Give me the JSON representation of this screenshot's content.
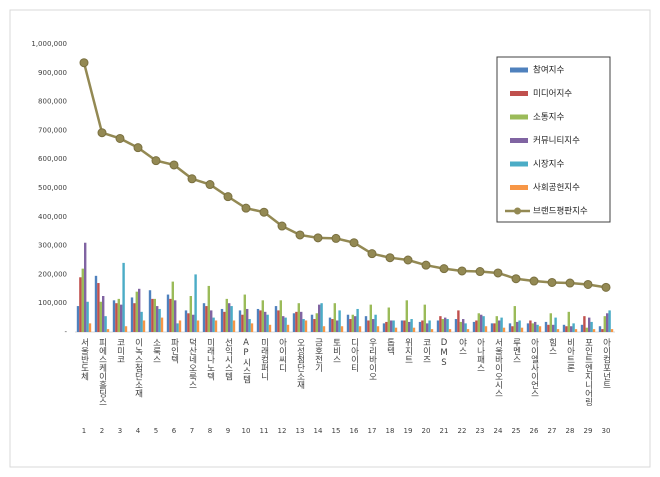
{
  "chart_data": {
    "type": "bar-line",
    "categories": [
      "서울반도체",
      "피에스케이홀딩스",
      "코미코",
      "이녹스첨단소재",
      "소룩스",
      "파인텍",
      "덕산네오룩스",
      "미래나노텍",
      "선익시스템",
      "AP시스템",
      "미래컴퍼니",
      "아이씨디",
      "오성첨단소재",
      "금호전기",
      "토비스",
      "디아이티",
      "우리바이오",
      "톱텍",
      "위지트",
      "코이즈",
      "DMS",
      "야스",
      "아나패스",
      "서울바이오시스",
      "루멘스",
      "아이엘사이언스",
      "힘스",
      "비아트론",
      "포인트엔지니어링",
      "아이컴포넌트"
    ],
    "ranks": [
      1,
      2,
      3,
      4,
      5,
      6,
      7,
      8,
      9,
      10,
      11,
      12,
      13,
      14,
      15,
      16,
      17,
      18,
      19,
      20,
      21,
      22,
      23,
      24,
      25,
      26,
      27,
      28,
      29,
      30
    ],
    "series": [
      {
        "name": "참여지수",
        "color": "#4f81bd",
        "values": [
          90000,
          195000,
          110000,
          120000,
          145000,
          130000,
          75000,
          100000,
          80000,
          75000,
          80000,
          90000,
          65000,
          60000,
          50000,
          60000,
          55000,
          30000,
          40000,
          35000,
          40000,
          45000,
          35000,
          30000,
          30000,
          30000,
          35000,
          25000,
          25000,
          20000
        ]
      },
      {
        "name": "미디어지수",
        "color": "#c0504d",
        "values": [
          190000,
          170000,
          100000,
          100000,
          115000,
          115000,
          65000,
          90000,
          70000,
          60000,
          75000,
          75000,
          70000,
          45000,
          45000,
          45000,
          40000,
          35000,
          40000,
          40000,
          55000,
          75000,
          40000,
          30000,
          20000,
          40000,
          25000,
          20000,
          55000,
          10000
        ]
      },
      {
        "name": "소통지수",
        "color": "#9bbb59",
        "values": [
          220000,
          105000,
          115000,
          140000,
          115000,
          175000,
          125000,
          160000,
          115000,
          130000,
          110000,
          110000,
          100000,
          65000,
          100000,
          60000,
          95000,
          85000,
          110000,
          95000,
          45000,
          35000,
          65000,
          55000,
          90000,
          30000,
          65000,
          70000,
          15000,
          55000
        ]
      },
      {
        "name": "커뮤니티지수",
        "color": "#8064a2",
        "values": [
          310000,
          125000,
          95000,
          150000,
          90000,
          110000,
          60000,
          75000,
          100000,
          80000,
          70000,
          55000,
          70000,
          95000,
          40000,
          55000,
          45000,
          40000,
          35000,
          30000,
          50000,
          45000,
          60000,
          40000,
          35000,
          35000,
          25000,
          20000,
          50000,
          65000
        ]
      },
      {
        "name": "시장지수",
        "color": "#4bacc6",
        "values": [
          105000,
          55000,
          240000,
          70000,
          80000,
          30000,
          200000,
          50000,
          90000,
          45000,
          60000,
          50000,
          45000,
          100000,
          75000,
          80000,
          60000,
          40000,
          45000,
          40000,
          45000,
          30000,
          55000,
          50000,
          40000,
          25000,
          50000,
          30000,
          35000,
          75000
        ]
      },
      {
        "name": "사회공헌지수",
        "color": "#f79646",
        "values": [
          30000,
          10000,
          20000,
          40000,
          50000,
          40000,
          40000,
          40000,
          40000,
          30000,
          25000,
          25000,
          40000,
          20000,
          20000,
          20000,
          20000,
          15000,
          15000,
          10000,
          10000,
          10000,
          20000,
          15000,
          15000,
          20000,
          10000,
          10000,
          10000,
          10000
        ]
      },
      {
        "name": "브랜드평판지수",
        "color": "#938953",
        "type": "line",
        "values": [
          935000,
          692000,
          672000,
          640000,
          595000,
          580000,
          532000,
          512000,
          470000,
          430000,
          416000,
          368000,
          337000,
          327000,
          325000,
          310000,
          272000,
          258000,
          250000,
          232000,
          220000,
          212000,
          210000,
          205000,
          185000,
          177000,
          172000,
          170000,
          165000,
          155000
        ]
      }
    ],
    "ylim": [
      0,
      1000000
    ],
    "yticks": [
      {
        "value": 0,
        "label": "-"
      },
      {
        "value": 100000,
        "label": "100,000"
      },
      {
        "value": 200000,
        "label": "200,000"
      },
      {
        "value": 300000,
        "label": "300,000"
      },
      {
        "value": 400000,
        "label": "400,000"
      },
      {
        "value": 500000,
        "label": "500,000"
      },
      {
        "value": 600000,
        "label": "600,000"
      },
      {
        "value": 700000,
        "label": "700,000"
      },
      {
        "value": 800000,
        "label": "800,000"
      },
      {
        "value": 900000,
        "label": "900,000"
      },
      {
        "value": {
          "value": 1000000
        },
        "label": "1,000,000"
      }
    ],
    "legend": "upper right"
  }
}
